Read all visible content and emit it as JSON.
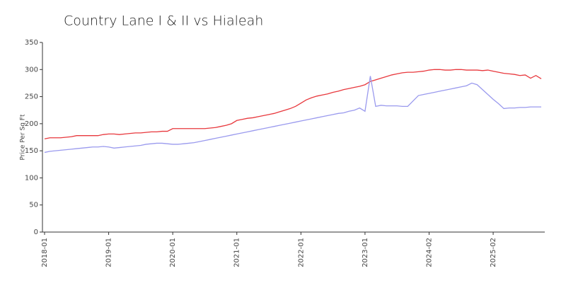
{
  "chart_data": {
    "type": "line",
    "title": "Country Lane I & II vs Hialeah",
    "y_label": "Price Per Sq Ft",
    "categories": [
      "2018-01",
      null,
      null,
      null,
      null,
      null,
      null,
      null,
      null,
      null,
      null,
      null,
      "2019-01",
      null,
      null,
      null,
      null,
      null,
      null,
      null,
      null,
      null,
      null,
      null,
      "2020-01",
      null,
      null,
      null,
      null,
      null,
      null,
      null,
      null,
      null,
      null,
      null,
      "2021-01",
      null,
      null,
      null,
      null,
      null,
      null,
      null,
      null,
      null,
      null,
      null,
      "2022-01",
      null,
      null,
      null,
      null,
      null,
      null,
      null,
      null,
      null,
      null,
      null,
      "2023-01",
      null,
      null,
      null,
      null,
      null,
      null,
      null,
      null,
      null,
      null,
      null,
      "2024-02",
      null,
      null,
      null,
      null,
      null,
      null,
      null,
      null,
      null,
      null,
      null,
      "2025-02",
      null,
      null,
      null,
      null,
      null,
      null,
      null,
      null,
      null
    ],
    "series": [
      {
        "color": "#e8383d",
        "values": [
          172,
          174,
          174,
          174,
          175,
          176,
          178,
          178,
          178,
          178,
          178,
          180,
          181,
          181,
          180,
          181,
          182,
          183,
          183,
          184,
          185,
          185,
          186,
          186,
          191,
          191,
          191,
          191,
          191,
          191,
          191,
          192,
          193,
          195,
          197,
          200,
          206,
          208,
          210,
          211,
          213,
          215,
          217,
          219,
          222,
          225,
          228,
          232,
          238,
          244,
          248,
          251,
          253,
          255,
          258,
          260,
          263,
          265,
          267,
          269,
          272,
          278,
          281,
          284,
          287,
          290,
          292,
          294,
          295,
          295,
          296,
          297,
          299,
          300,
          300,
          299,
          299,
          300,
          300,
          299,
          299,
          299,
          298,
          299,
          297,
          295,
          293,
          292,
          291,
          289,
          290,
          284,
          289,
          283
        ]
      },
      {
        "color": "#9a9aee",
        "values": [
          147,
          149,
          150,
          151,
          152,
          153,
          154,
          155,
          156,
          157,
          157,
          158,
          157,
          155,
          156,
          157,
          158,
          159,
          160,
          162,
          163,
          164,
          164,
          163,
          162,
          162,
          163,
          164,
          165,
          167,
          169,
          171,
          173,
          175,
          177,
          179,
          181,
          183,
          185,
          187,
          189,
          191,
          193,
          195,
          197,
          199,
          201,
          203,
          205,
          207,
          209,
          211,
          213,
          215,
          217,
          219,
          220,
          223,
          225,
          229,
          223,
          288,
          232,
          234,
          233,
          233,
          233,
          232,
          232,
          242,
          252,
          254,
          256,
          258,
          260,
          262,
          264,
          266,
          268,
          270,
          275,
          272,
          263,
          254,
          245,
          237,
          228,
          229,
          229,
          230,
          230,
          231,
          231,
          231
        ]
      }
    ],
    "ylim": [
      0,
      350
    ],
    "yticks": [
      0,
      50,
      100,
      150,
      200,
      250,
      300,
      350
    ]
  }
}
